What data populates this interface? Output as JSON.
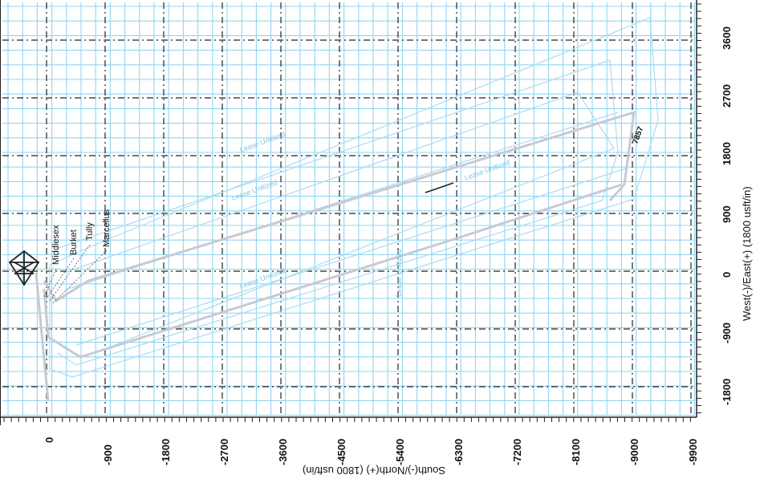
{
  "plot": {
    "x_axis_title": "South(-)/North(+) (1800 usft/in)",
    "y_axis_title": "West(-)/East(+) (1800 usft/in)",
    "x_ticks": [
      "0",
      "-900",
      "-1800",
      "-2700",
      "-3600",
      "-4500",
      "-5400",
      "-6300",
      "-7200",
      "-8100",
      "-9000",
      "-9900"
    ],
    "y_ticks": [
      "3600",
      "2700",
      "1800",
      "900",
      "0",
      "-900",
      "-1800"
    ],
    "formations": [
      "Middlesex",
      "Burket",
      "Tully",
      "Marcellus"
    ],
    "well_label": "7857",
    "faint_labels": [
      "Lease Unitized",
      "Lease Unitized",
      "Lease Unitized",
      "Lease Unitized",
      "Lease Unitized"
    ],
    "colors": {
      "grid": "#8fd6f2",
      "dash_grid": "#222222",
      "plan_lines": "#a9dcf1",
      "wellbore": "#c9c9d4"
    },
    "rig_icon": "drilling-rig-icon"
  }
}
